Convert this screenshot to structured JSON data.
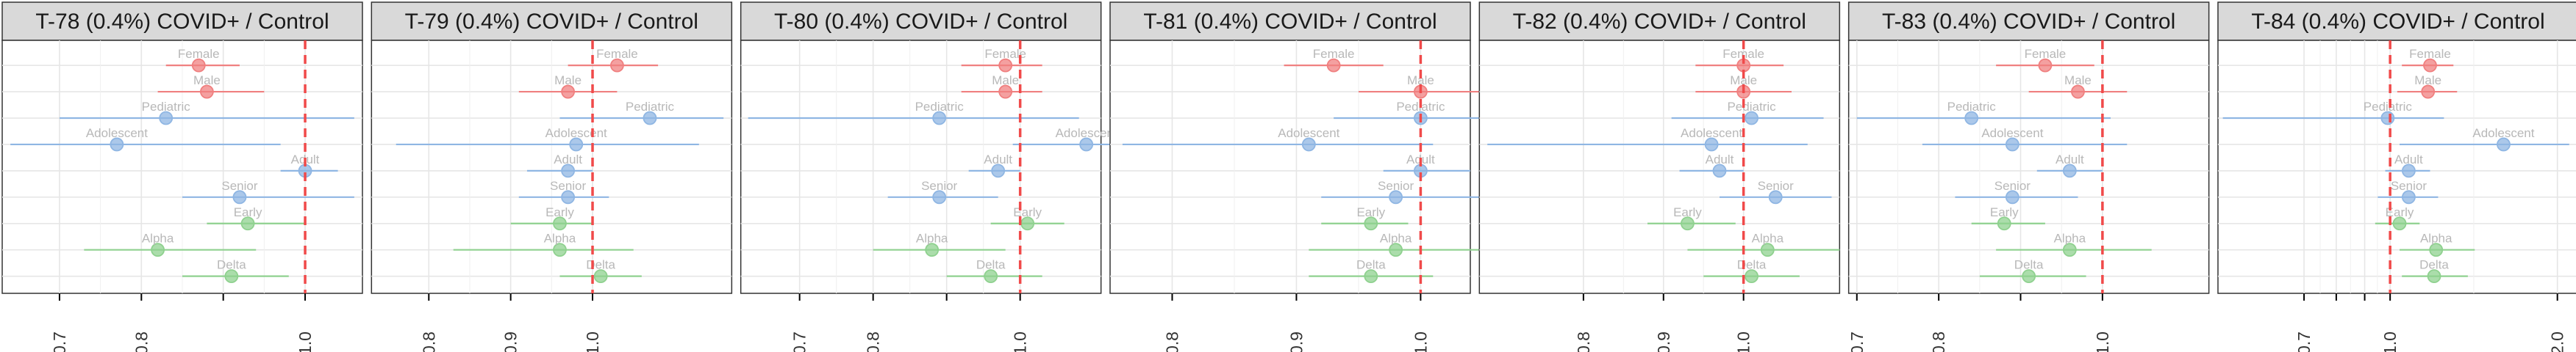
{
  "chart_data": [
    {
      "type": "forest",
      "title": "T-78 (0.4%) COVID+ / Control",
      "xlim": [
        0.63,
        1.07
      ],
      "xticks": [
        0.7,
        0.8,
        0.9,
        1.0
      ],
      "xtick_labels": [
        "0.7",
        "0.8",
        "1.0"
      ],
      "xtick_label_values": [
        0.7,
        0.8,
        1.0
      ],
      "reference_line": 1.0,
      "rows": [
        {
          "label": "Female",
          "group": "sex",
          "estimate": 0.87,
          "ci_low": 0.83,
          "ci_high": 0.92
        },
        {
          "label": "Male",
          "group": "sex",
          "estimate": 0.88,
          "ci_low": 0.82,
          "ci_high": 0.95
        },
        {
          "label": "Pediatric",
          "group": "age",
          "estimate": 0.83,
          "ci_low": 0.7,
          "ci_high": 1.06
        },
        {
          "label": "Adolescent",
          "group": "age",
          "estimate": 0.77,
          "ci_low": 0.64,
          "ci_high": 0.97
        },
        {
          "label": "Adult",
          "group": "age",
          "estimate": 1.0,
          "ci_low": 0.97,
          "ci_high": 1.04
        },
        {
          "label": "Senior",
          "group": "age",
          "estimate": 0.92,
          "ci_low": 0.85,
          "ci_high": 1.06
        },
        {
          "label": "Early",
          "group": "variant",
          "estimate": 0.93,
          "ci_low": 0.88,
          "ci_high": 1.0
        },
        {
          "label": "Alpha",
          "group": "variant",
          "estimate": 0.82,
          "ci_low": 0.73,
          "ci_high": 0.94
        },
        {
          "label": "Delta",
          "group": "variant",
          "estimate": 0.91,
          "ci_low": 0.85,
          "ci_high": 0.98
        }
      ]
    },
    {
      "type": "forest",
      "title": "T-79 (0.4%) COVID+ / Control",
      "xlim": [
        0.73,
        1.17
      ],
      "xticks": [
        0.8,
        0.9,
        1.0
      ],
      "xtick_labels": [
        "0.8",
        "0.9",
        "1.0"
      ],
      "xtick_label_values": [
        0.8,
        0.9,
        1.0
      ],
      "reference_line": 1.0,
      "rows": [
        {
          "label": "Female",
          "group": "sex",
          "estimate": 1.03,
          "ci_low": 0.97,
          "ci_high": 1.08
        },
        {
          "label": "Male",
          "group": "sex",
          "estimate": 0.97,
          "ci_low": 0.91,
          "ci_high": 1.03
        },
        {
          "label": "Pediatric",
          "group": "age",
          "estimate": 1.07,
          "ci_low": 0.96,
          "ci_high": 1.16
        },
        {
          "label": "Adolescent",
          "group": "age",
          "estimate": 0.98,
          "ci_low": 0.76,
          "ci_high": 1.13
        },
        {
          "label": "Adult",
          "group": "age",
          "estimate": 0.97,
          "ci_low": 0.92,
          "ci_high": 1.0
        },
        {
          "label": "Senior",
          "group": "age",
          "estimate": 0.97,
          "ci_low": 0.91,
          "ci_high": 1.02
        },
        {
          "label": "Early",
          "group": "variant",
          "estimate": 0.96,
          "ci_low": 0.9,
          "ci_high": 1.0
        },
        {
          "label": "Alpha",
          "group": "variant",
          "estimate": 0.96,
          "ci_low": 0.83,
          "ci_high": 1.05
        },
        {
          "label": "Delta",
          "group": "variant",
          "estimate": 1.01,
          "ci_low": 0.96,
          "ci_high": 1.06
        }
      ]
    },
    {
      "type": "forest",
      "title": "T-80 (0.4%) COVID+ / Control",
      "xlim": [
        0.62,
        1.11
      ],
      "xticks": [
        0.7,
        0.8,
        0.9,
        1.0
      ],
      "xtick_labels": [
        "0.7",
        "0.8",
        "1.0"
      ],
      "xtick_label_values": [
        0.7,
        0.8,
        1.0
      ],
      "reference_line": 1.0,
      "rows": [
        {
          "label": "Female",
          "group": "sex",
          "estimate": 0.98,
          "ci_low": 0.92,
          "ci_high": 1.03
        },
        {
          "label": "Male",
          "group": "sex",
          "estimate": 0.98,
          "ci_low": 0.92,
          "ci_high": 1.03
        },
        {
          "label": "Pediatric",
          "group": "age",
          "estimate": 0.89,
          "ci_low": 0.63,
          "ci_high": 1.08
        },
        {
          "label": "Adolescent",
          "group": "age",
          "estimate": 1.09,
          "ci_low": 0.99,
          "ci_high": 1.17
        },
        {
          "label": "Adult",
          "group": "age",
          "estimate": 0.97,
          "ci_low": 0.93,
          "ci_high": 1.0
        },
        {
          "label": "Senior",
          "group": "age",
          "estimate": 0.89,
          "ci_low": 0.82,
          "ci_high": 0.97
        },
        {
          "label": "Early",
          "group": "variant",
          "estimate": 1.01,
          "ci_low": 0.96,
          "ci_high": 1.06
        },
        {
          "label": "Alpha",
          "group": "variant",
          "estimate": 0.88,
          "ci_low": 0.8,
          "ci_high": 0.98
        },
        {
          "label": "Delta",
          "group": "variant",
          "estimate": 0.96,
          "ci_low": 0.9,
          "ci_high": 1.03
        }
      ]
    },
    {
      "type": "forest",
      "title": "T-81 (0.4%) COVID+ / Control",
      "xlim": [
        0.75,
        1.04
      ],
      "xticks": [
        0.8,
        0.9,
        1.0
      ],
      "xtick_labels": [
        "0.8",
        "0.9",
        "1.0"
      ],
      "xtick_label_values": [
        0.8,
        0.9,
        1.0
      ],
      "reference_line": 1.0,
      "rows": [
        {
          "label": "Female",
          "group": "sex",
          "estimate": 0.93,
          "ci_low": 0.89,
          "ci_high": 0.97
        },
        {
          "label": "Male",
          "group": "sex",
          "estimate": 1.0,
          "ci_low": 0.95,
          "ci_high": 1.05
        },
        {
          "label": "Pediatric",
          "group": "age",
          "estimate": 1.0,
          "ci_low": 0.93,
          "ci_high": 1.06
        },
        {
          "label": "Adolescent",
          "group": "age",
          "estimate": 0.91,
          "ci_low": 0.76,
          "ci_high": 1.01
        },
        {
          "label": "Adult",
          "group": "age",
          "estimate": 1.0,
          "ci_low": 0.97,
          "ci_high": 1.04
        },
        {
          "label": "Senior",
          "group": "age",
          "estimate": 0.98,
          "ci_low": 0.92,
          "ci_high": 1.05
        },
        {
          "label": "Early",
          "group": "variant",
          "estimate": 0.96,
          "ci_low": 0.92,
          "ci_high": 0.99
        },
        {
          "label": "Alpha",
          "group": "variant",
          "estimate": 0.98,
          "ci_low": 0.91,
          "ci_high": 1.05
        },
        {
          "label": "Delta",
          "group": "variant",
          "estimate": 0.96,
          "ci_low": 0.91,
          "ci_high": 1.01
        }
      ]
    },
    {
      "type": "forest",
      "title": "T-82 (0.4%) COVID+ / Control",
      "xlim": [
        0.67,
        1.12
      ],
      "xticks": [
        0.8,
        0.9,
        1.0
      ],
      "xtick_labels": [
        "0.8",
        "0.9",
        "1.0"
      ],
      "xtick_label_values": [
        0.8,
        0.9,
        1.0
      ],
      "reference_line": 1.0,
      "rows": [
        {
          "label": "Female",
          "group": "sex",
          "estimate": 1.0,
          "ci_low": 0.94,
          "ci_high": 1.05
        },
        {
          "label": "Male",
          "group": "sex",
          "estimate": 1.0,
          "ci_low": 0.94,
          "ci_high": 1.06
        },
        {
          "label": "Pediatric",
          "group": "age",
          "estimate": 1.01,
          "ci_low": 0.91,
          "ci_high": 1.1
        },
        {
          "label": "Adolescent",
          "group": "age",
          "estimate": 0.96,
          "ci_low": 0.68,
          "ci_high": 1.08
        },
        {
          "label": "Adult",
          "group": "age",
          "estimate": 0.97,
          "ci_low": 0.92,
          "ci_high": 1.0
        },
        {
          "label": "Senior",
          "group": "age",
          "estimate": 1.04,
          "ci_low": 0.97,
          "ci_high": 1.11
        },
        {
          "label": "Early",
          "group": "variant",
          "estimate": 0.93,
          "ci_low": 0.88,
          "ci_high": 0.99
        },
        {
          "label": "Alpha",
          "group": "variant",
          "estimate": 1.03,
          "ci_low": 0.93,
          "ci_high": 1.12
        },
        {
          "label": "Delta",
          "group": "variant",
          "estimate": 1.01,
          "ci_low": 0.95,
          "ci_high": 1.07
        }
      ]
    },
    {
      "type": "forest",
      "title": "T-83 (0.4%) COVID+ / Control",
      "xlim": [
        0.69,
        1.13
      ],
      "xticks": [
        0.7,
        0.8,
        0.9,
        1.0
      ],
      "xtick_labels": [
        "0.7",
        "0.8",
        "1.0"
      ],
      "xtick_label_values": [
        0.7,
        0.8,
        1.0
      ],
      "reference_line": 1.0,
      "rows": [
        {
          "label": "Female",
          "group": "sex",
          "estimate": 0.93,
          "ci_low": 0.87,
          "ci_high": 0.99
        },
        {
          "label": "Male",
          "group": "sex",
          "estimate": 0.97,
          "ci_low": 0.91,
          "ci_high": 1.03
        },
        {
          "label": "Pediatric",
          "group": "age",
          "estimate": 0.84,
          "ci_low": 0.7,
          "ci_high": 1.01
        },
        {
          "label": "Adolescent",
          "group": "age",
          "estimate": 0.89,
          "ci_low": 0.78,
          "ci_high": 1.03
        },
        {
          "label": "Adult",
          "group": "age",
          "estimate": 0.96,
          "ci_low": 0.92,
          "ci_high": 1.0
        },
        {
          "label": "Senior",
          "group": "age",
          "estimate": 0.89,
          "ci_low": 0.82,
          "ci_high": 0.97
        },
        {
          "label": "Early",
          "group": "variant",
          "estimate": 0.88,
          "ci_low": 0.84,
          "ci_high": 0.93
        },
        {
          "label": "Alpha",
          "group": "variant",
          "estimate": 0.96,
          "ci_low": 0.87,
          "ci_high": 1.06
        },
        {
          "label": "Delta",
          "group": "variant",
          "estimate": 0.91,
          "ci_low": 0.85,
          "ci_high": 0.98
        }
      ]
    },
    {
      "type": "forest",
      "title": "T-84 (0.4%) COVID+ / Control",
      "xlim": [
        0.49,
        2.18
      ],
      "xticks": [
        0.7,
        0.8,
        0.9,
        1.0,
        2.0
      ],
      "xtick_labels": [
        "0.7",
        "1.0",
        "2.0"
      ],
      "xtick_label_values": [
        0.7,
        1.0,
        2.0
      ],
      "reference_line": 1.0,
      "xscale": "log",
      "rows": [
        {
          "label": "Female",
          "group": "sex",
          "estimate": 1.18,
          "ci_low": 1.05,
          "ci_high": 1.3
        },
        {
          "label": "Male",
          "group": "sex",
          "estimate": 1.17,
          "ci_low": 1.03,
          "ci_high": 1.32
        },
        {
          "label": "Pediatric",
          "group": "age",
          "estimate": 0.99,
          "ci_low": 0.5,
          "ci_high": 1.25
        },
        {
          "label": "Adolescent",
          "group": "age",
          "estimate": 1.6,
          "ci_low": 1.04,
          "ci_high": 2.1
        },
        {
          "label": "Adult",
          "group": "age",
          "estimate": 1.08,
          "ci_low": 0.98,
          "ci_high": 1.18
        },
        {
          "label": "Senior",
          "group": "age",
          "estimate": 1.08,
          "ci_low": 0.95,
          "ci_high": 1.22
        },
        {
          "label": "Early",
          "group": "variant",
          "estimate": 1.04,
          "ci_low": 0.94,
          "ci_high": 1.13
        },
        {
          "label": "Alpha",
          "group": "variant",
          "estimate": 1.21,
          "ci_low": 1.04,
          "ci_high": 1.42
        },
        {
          "label": "Delta",
          "group": "variant",
          "estimate": 1.2,
          "ci_low": 1.05,
          "ci_high": 1.38
        }
      ]
    }
  ],
  "colors": {
    "sex": "#f08080",
    "age": "#8fb6e3",
    "variant": "#8fd18f",
    "reference_line": "#f04a4a",
    "strip_fill": "#d9d9d9",
    "label_text": "#b8b8b8"
  },
  "grid": true,
  "legend": "none"
}
